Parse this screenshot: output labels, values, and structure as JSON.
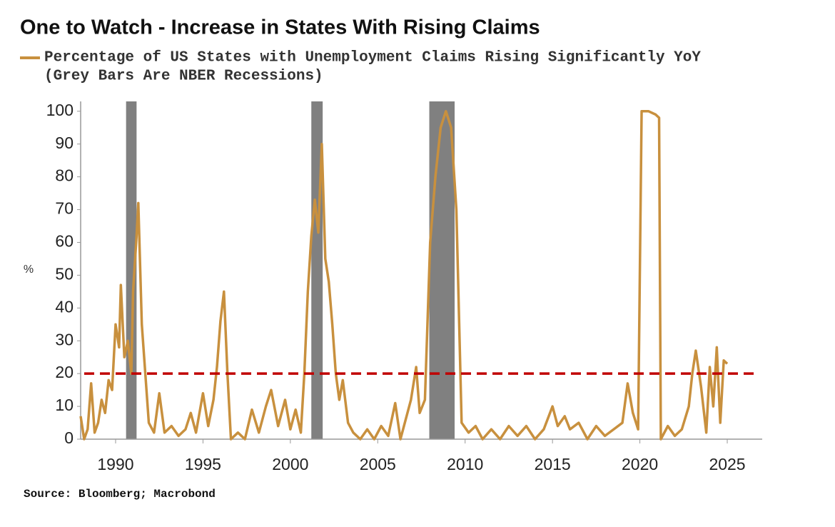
{
  "chart_data": {
    "type": "line",
    "title": "One to Watch - Increase in States With Rising Claims",
    "note": "(Grey Bars Are NBER Recessions)",
    "ylabel": "%",
    "source": "Source: Bloomberg; Macrobond",
    "xlim": [
      1988,
      2027
    ],
    "xticks": [
      1990,
      1995,
      2000,
      2005,
      2010,
      2015,
      2020,
      2025
    ],
    "ylim": [
      0,
      103
    ],
    "yticks": [
      0,
      10,
      20,
      30,
      40,
      50,
      60,
      70,
      80,
      90,
      100
    ],
    "recession_color": "#808080",
    "recessions": [
      [
        1990.6,
        1991.2
      ],
      [
        2001.2,
        2001.85
      ],
      [
        2007.95,
        2009.4
      ]
    ],
    "threshold": {
      "value": 20,
      "color": "#c00000"
    },
    "x": [
      1988.0,
      1988.2,
      1988.4,
      1988.6,
      1988.8,
      1989.0,
      1989.2,
      1989.4,
      1989.6,
      1989.8,
      1990.0,
      1990.2,
      1990.3,
      1990.5,
      1990.7,
      1990.9,
      1991.0,
      1991.2,
      1991.3,
      1991.5,
      1991.7,
      1991.9,
      1992.2,
      1992.5,
      1992.8,
      1993.2,
      1993.6,
      1994.0,
      1994.3,
      1994.6,
      1995.0,
      1995.3,
      1995.6,
      1995.8,
      1996.0,
      1996.2,
      1996.4,
      1996.6,
      1997.0,
      1997.4,
      1997.8,
      1998.2,
      1998.6,
      1998.9,
      1999.3,
      1999.7,
      2000.0,
      2000.3,
      2000.6,
      2000.8,
      2001.0,
      2001.2,
      2001.4,
      2001.6,
      2001.8,
      2002.0,
      2002.2,
      2002.4,
      2002.6,
      2002.8,
      2003.0,
      2003.3,
      2003.6,
      2004.0,
      2004.4,
      2004.8,
      2005.2,
      2005.6,
      2006.0,
      2006.3,
      2006.6,
      2006.9,
      2007.2,
      2007.4,
      2007.7,
      2008.0,
      2008.3,
      2008.6,
      2008.9,
      2009.2,
      2009.5,
      2009.8,
      2010.2,
      2010.6,
      2011.0,
      2011.5,
      2012.0,
      2012.5,
      2013.0,
      2013.5,
      2014.0,
      2014.5,
      2015.0,
      2015.3,
      2015.7,
      2016.0,
      2016.5,
      2017.0,
      2017.5,
      2018.0,
      2018.5,
      2019.0,
      2019.3,
      2019.6,
      2019.9,
      2020.1,
      2020.5,
      2020.9,
      2021.1,
      2021.2,
      2021.6,
      2022.0,
      2022.4,
      2022.8,
      2023.0,
      2023.2,
      2023.5,
      2023.8,
      2024.0,
      2024.2,
      2024.4,
      2024.6,
      2024.8,
      2025.0
    ],
    "series": [
      {
        "name": "Percentage of US States with Unemployment Claims Rising Significantly YoY",
        "color": "#c8903e",
        "values": [
          7,
          0,
          3,
          17,
          2,
          5,
          12,
          8,
          18,
          15,
          35,
          28,
          47,
          25,
          30,
          20,
          45,
          62,
          72,
          35,
          20,
          5,
          2,
          14,
          2,
          4,
          1,
          3,
          8,
          2,
          14,
          4,
          12,
          22,
          36,
          45,
          20,
          0,
          2,
          0,
          9,
          2,
          10,
          15,
          4,
          12,
          3,
          9,
          2,
          20,
          45,
          62,
          73,
          63,
          90,
          55,
          48,
          35,
          20,
          12,
          18,
          5,
          2,
          0,
          3,
          0,
          4,
          1,
          11,
          0,
          6,
          12,
          22,
          8,
          12,
          60,
          80,
          95,
          100,
          95,
          70,
          5,
          2,
          4,
          0,
          3,
          0,
          4,
          1,
          4,
          0,
          3,
          10,
          4,
          7,
          3,
          5,
          0,
          4,
          1,
          3,
          5,
          17,
          8,
          3,
          100,
          100,
          99,
          98,
          0,
          4,
          1,
          3,
          10,
          20,
          27,
          16,
          2,
          22,
          10,
          28,
          5,
          24,
          23
        ]
      }
    ]
  }
}
